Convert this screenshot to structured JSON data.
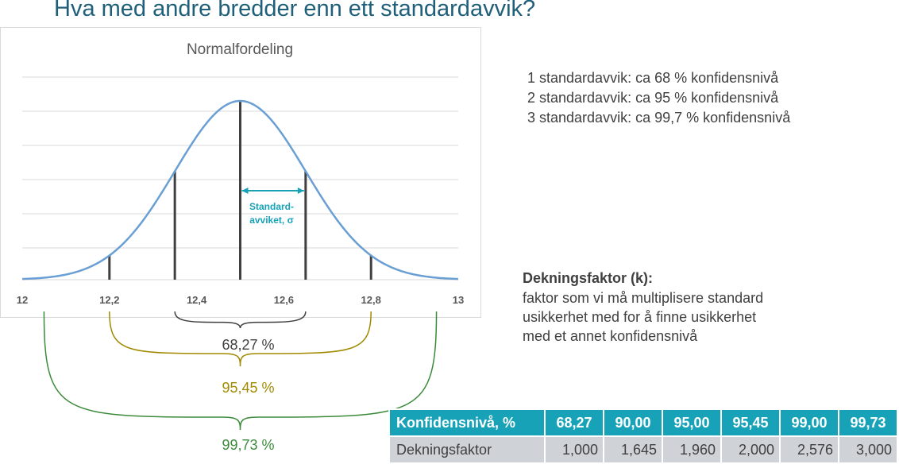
{
  "slide": {
    "title": "Hva med andre bredder enn ett standardavvik?"
  },
  "chart_data": {
    "type": "line",
    "title": "Normalfordeling",
    "xlabel": "",
    "ylabel": "",
    "xlim": [
      12,
      13
    ],
    "x_ticks": [
      "12",
      "12,2",
      "12,4",
      "12,6",
      "12,8",
      "13"
    ],
    "mean": 12.5,
    "sigma": 0.15,
    "gridlines": "horizontal",
    "series": [
      {
        "x": [
          12.0,
          12.05,
          12.1,
          12.15,
          12.2,
          12.25,
          12.3,
          12.35,
          12.4,
          12.45,
          12.5,
          12.55,
          12.6,
          12.65,
          12.7,
          12.75,
          12.8,
          12.85,
          12.9,
          12.95,
          13.0
        ],
        "y": [
          0.0015,
          0.0066,
          0.0239,
          0.0703,
          0.1683,
          0.3279,
          0.5202,
          0.6722,
          0.8071,
          0.9467,
          1.0,
          0.9467,
          0.8071,
          0.6722,
          0.5202,
          0.3279,
          0.1683,
          0.0703,
          0.0239,
          0.0066,
          0.0015
        ]
      }
    ],
    "vertical_markers": [
      12.2,
      12.35,
      12.5,
      12.65,
      12.8
    ],
    "annotation": {
      "text_line1": "Standard-",
      "text_line2": "avviket, σ",
      "from": 12.5,
      "to": 12.65
    },
    "intervals": [
      {
        "label": "68,27 %",
        "from": 12.35,
        "to": 12.65,
        "color": "#404040"
      },
      {
        "label": "95,45 %",
        "from": 12.2,
        "to": 12.8,
        "color": "#a08a00"
      },
      {
        "label": "99,73 %",
        "from": 12.05,
        "to": 12.95,
        "color": "#3a8a3a"
      }
    ],
    "colors": {
      "curve": "#6a9fd4",
      "marker": "#404040",
      "arrow": "#17a2b8",
      "grid": "#d9d9d9"
    }
  },
  "confidence_lines": [
    "1 standardavvik: ca 68 % konfidensnivå",
    "2 standardavvik: ca 95 % konfidensnivå",
    "3 standardavvik: ca 99,7 % konfidensnivå"
  ],
  "k_section": {
    "heading": "Dekningsfaktor (k):",
    "desc": [
      "faktor som vi må multiplisere standard",
      "usikkerhet med for å finne usikkerhet",
      "med et annet konfidensnivå"
    ]
  },
  "table": {
    "header": [
      "Konfidensnivå, %",
      "68,27",
      "90,00",
      "95,00",
      "95,45",
      "99,00",
      "99,73"
    ],
    "row": [
      "Dekningsfaktor",
      "1,000",
      "1,645",
      "1,960",
      "2,000",
      "2,576",
      "3,000"
    ]
  }
}
